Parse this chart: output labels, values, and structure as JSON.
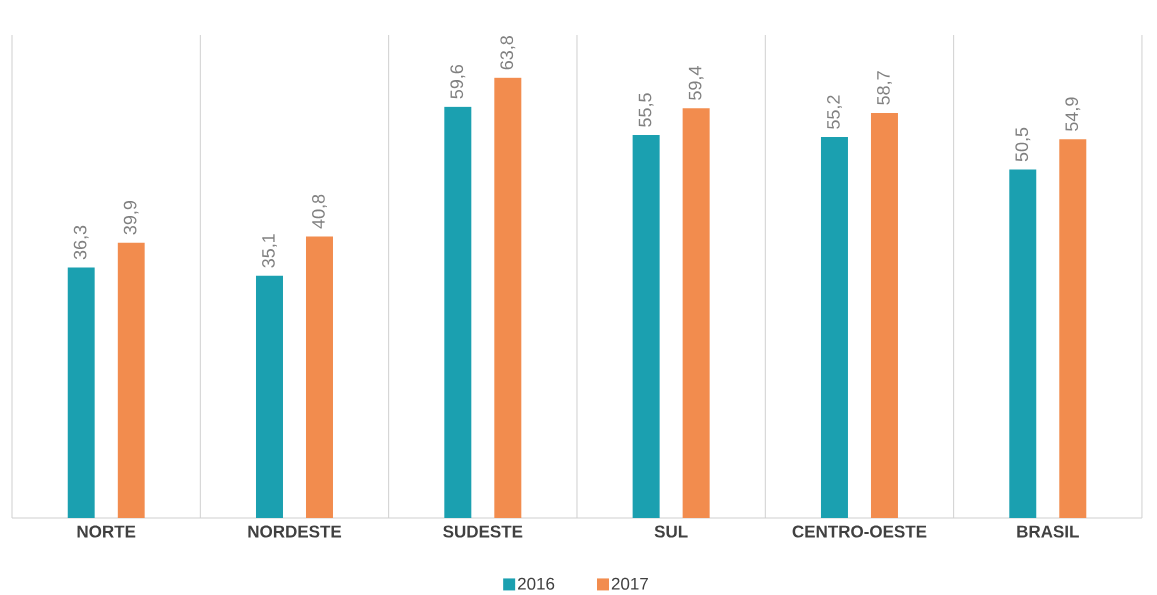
{
  "chart_data": {
    "type": "bar",
    "categories": [
      "NORTE",
      "NORDESTE",
      "SUDESTE",
      "SUL",
      "CENTRO-OESTE",
      "BRASIL"
    ],
    "series": [
      {
        "name": "2016",
        "color": "#1ba0b0",
        "values": [
          36.3,
          35.1,
          59.6,
          55.5,
          55.2,
          50.5
        ],
        "value_labels": [
          "36,3",
          "35,1",
          "59,6",
          "55,5",
          "55,2",
          "50,5"
        ]
      },
      {
        "name": "2017",
        "color": "#f28c4e",
        "values": [
          39.9,
          40.8,
          63.8,
          59.4,
          58.7,
          54.9
        ],
        "value_labels": [
          "39,9",
          "40,8",
          "63,8",
          "59,4",
          "58,7",
          "54,9"
        ]
      }
    ],
    "ylim": [
      0,
      70
    ],
    "grid": "x",
    "legend": "bottom"
  }
}
